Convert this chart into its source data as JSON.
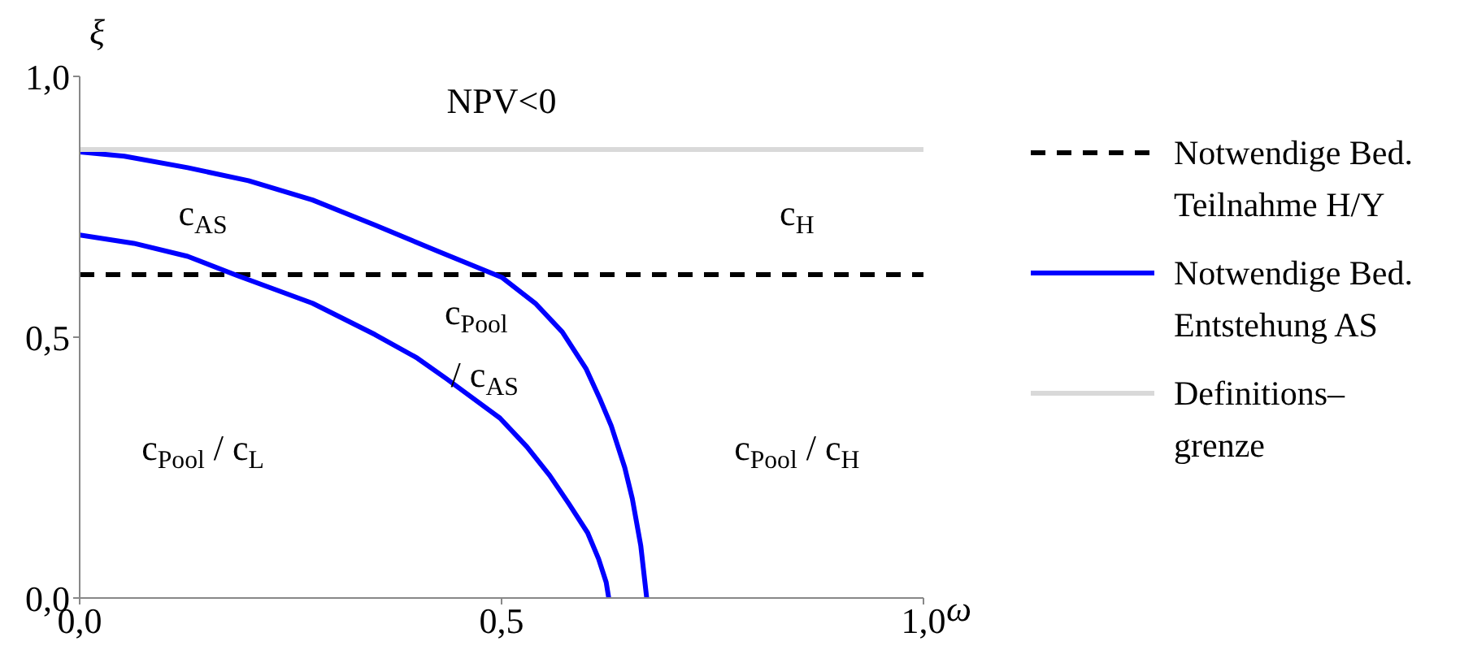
{
  "chart_data": {
    "type": "line",
    "xlabel": "ω",
    "ylabel": "ξ",
    "xlim": [
      0,
      1
    ],
    "ylim": [
      0,
      1
    ],
    "xticks": [
      {
        "value": 0,
        "label": "0,0"
      },
      {
        "value": 0.5,
        "label": "0,5"
      },
      {
        "value": 1,
        "label": "1,0"
      }
    ],
    "yticks": [
      {
        "value": 0,
        "label": "0,0"
      },
      {
        "value": 0.5,
        "label": "0,5"
      },
      {
        "value": 1,
        "label": "1,0"
      }
    ],
    "grid": false,
    "legend": "right",
    "marker": "none",
    "series": [
      {
        "name": "Notwendige Bed. Teilnahme H/Y",
        "color": "#000000",
        "line_style": "dashed",
        "x": [
          0,
          1
        ],
        "values": [
          0.62,
          0.62
        ]
      },
      {
        "name": "Notwendige Bed. Entstehung AS",
        "color": "#0000ff",
        "line_style": "solid",
        "x": [
          0,
          0.053,
          0.128,
          0.2,
          0.276,
          0.35,
          0.424,
          0.5,
          0.54,
          0.572,
          0.6,
          0.617,
          0.63,
          0.646,
          0.655,
          0.665,
          0.672
        ],
        "values": [
          0.855,
          0.847,
          0.825,
          0.8,
          0.763,
          0.715,
          0.665,
          0.615,
          0.565,
          0.51,
          0.44,
          0.38,
          0.33,
          0.25,
          0.19,
          0.1,
          0
        ]
      },
      {
        "color": "#0000ff",
        "line_style": "solid",
        "x": [
          0,
          0.064,
          0.128,
          0.187,
          0.276,
          0.35,
          0.4,
          0.435,
          0.498,
          0.53,
          0.557,
          0.58,
          0.602,
          0.615,
          0.624,
          0.627
        ],
        "values": [
          0.696,
          0.68,
          0.655,
          0.618,
          0.565,
          0.505,
          0.46,
          0.42,
          0.345,
          0.29,
          0.235,
          0.18,
          0.125,
          0.075,
          0.03,
          0
        ]
      },
      {
        "name": "Definitions–grenze",
        "color": "#d9d9d9",
        "line_style": "solid",
        "x": [
          0,
          1
        ],
        "values": [
          0.86,
          0.86
        ]
      }
    ],
    "annotations": [
      "NPV<0",
      "c$_{AS}$",
      "c$_{H}$",
      "c$_{Pool}$",
      "/ c$_{AS}$",
      "c$_{Pool}$ / c$_{L}$",
      "c$_{Pool}$ / c$_{H}$"
    ]
  }
}
